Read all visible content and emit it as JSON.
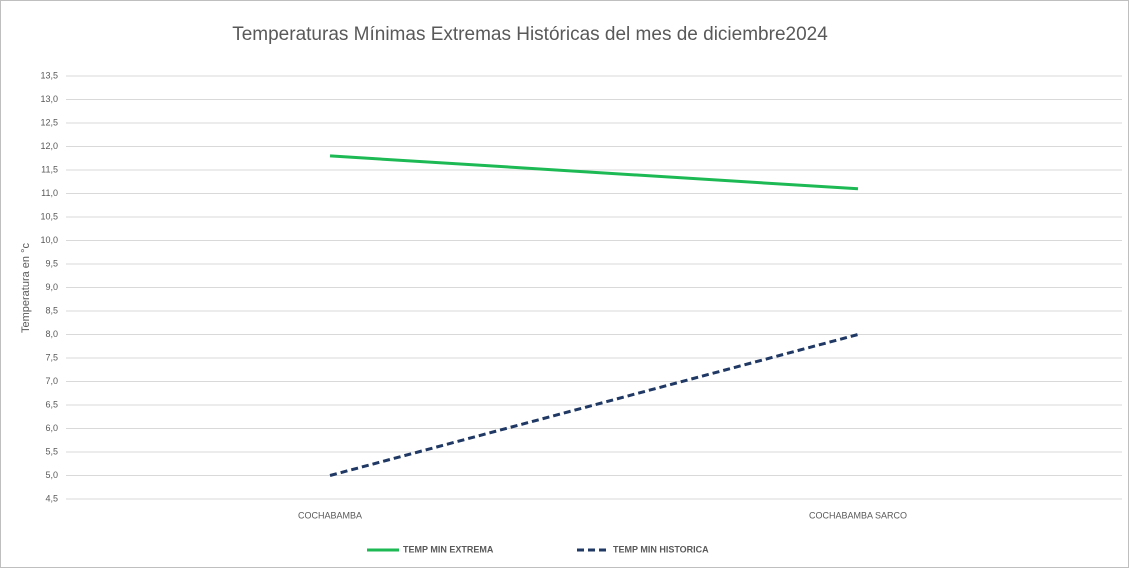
{
  "chart_data": {
    "type": "line",
    "title": "Temperaturas Mínimas Extremas Históricas del mes de diciembre2024",
    "y_label": "Temperatura en °c",
    "categories": [
      "COCHABAMBA",
      "COCHABAMBA SARCO"
    ],
    "series": [
      {
        "name": "TEMP MIN EXTREMA",
        "color": "#1db954",
        "dashed": false,
        "values": [
          11.8,
          11.1
        ]
      },
      {
        "name": "TEMP MIN HISTORICA",
        "color": "#1f3864",
        "dashed": true,
        "values": [
          5.0,
          8.0
        ]
      }
    ],
    "ylim": [
      4.5,
      13.5
    ],
    "yticks": [
      {
        "value": 4.5,
        "label": "4,5"
      },
      {
        "value": 5.0,
        "label": "5,0"
      },
      {
        "value": 5.5,
        "label": "5,5"
      },
      {
        "value": 6.0,
        "label": "6,0"
      },
      {
        "value": 6.5,
        "label": "6,5"
      },
      {
        "value": 7.0,
        "label": "7,0"
      },
      {
        "value": 7.5,
        "label": "7,5"
      },
      {
        "value": 8.0,
        "label": "8,0"
      },
      {
        "value": 8.5,
        "label": "8,5"
      },
      {
        "value": 9.0,
        "label": "9,0"
      },
      {
        "value": 9.5,
        "label": "9,5"
      },
      {
        "value": 10.0,
        "label": "10,0"
      },
      {
        "value": 10.5,
        "label": "10,5"
      },
      {
        "value": 11.0,
        "label": "11,0"
      },
      {
        "value": 11.5,
        "label": "11,5"
      },
      {
        "value": 12.0,
        "label": "12,0"
      },
      {
        "value": 12.5,
        "label": "12,5"
      },
      {
        "value": 13.0,
        "label": "13,0"
      },
      {
        "value": 13.5,
        "label": "13,5"
      }
    ],
    "grid": true,
    "legend": "bottom"
  }
}
